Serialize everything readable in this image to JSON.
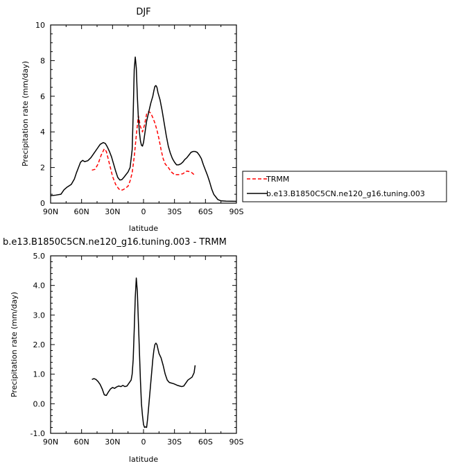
{
  "chart_data": [
    {
      "type": "line",
      "title": "DJF",
      "xlabel": "latitude",
      "ylabel": "Precipitation rate (mm/day)",
      "xlim": [
        90,
        -90
      ],
      "ylim": [
        0,
        10
      ],
      "x_ticks": [
        90,
        60,
        30,
        0,
        -30,
        -60,
        -90
      ],
      "x_tick_labels": [
        "90N",
        "60N",
        "30N",
        "0",
        "30S",
        "60S",
        "90S"
      ],
      "y_ticks": [
        0,
        2,
        4,
        6,
        8,
        10
      ],
      "y_tick_labels": [
        "0",
        "2",
        "4",
        "6",
        "8",
        "10"
      ],
      "legend_position": "right, outside plot",
      "series": [
        {
          "name": "TRMM",
          "color": "#ff0000",
          "dash": "dashed",
          "points": [
            [
              50,
              1.85
            ],
            [
              47,
              1.9
            ],
            [
              44,
              2.2
            ],
            [
              41,
              2.7
            ],
            [
              38,
              3.05
            ],
            [
              36,
              2.9
            ],
            [
              33,
              2.2
            ],
            [
              30,
              1.5
            ],
            [
              27,
              1.05
            ],
            [
              24,
              0.8
            ],
            [
              22,
              0.72
            ],
            [
              20,
              0.75
            ],
            [
              18,
              0.82
            ],
            [
              15,
              0.95
            ],
            [
              13,
              1.25
            ],
            [
              11,
              1.7
            ],
            [
              9,
              2.6
            ],
            [
              7,
              3.8
            ],
            [
              5,
              4.9
            ],
            [
              3,
              4.3
            ],
            [
              1,
              4.0
            ],
            [
              -1,
              4.4
            ],
            [
              -3,
              5.0
            ],
            [
              -5,
              5.15
            ],
            [
              -7,
              5.05
            ],
            [
              -9,
              4.8
            ],
            [
              -11,
              4.5
            ],
            [
              -13,
              4.1
            ],
            [
              -15,
              3.6
            ],
            [
              -17,
              3.0
            ],
            [
              -19,
              2.5
            ],
            [
              -21,
              2.2
            ],
            [
              -24,
              2.0
            ],
            [
              -27,
              1.75
            ],
            [
              -30,
              1.6
            ],
            [
              -34,
              1.6
            ],
            [
              -38,
              1.65
            ],
            [
              -42,
              1.8
            ],
            [
              -46,
              1.75
            ],
            [
              -50,
              1.55
            ]
          ]
        },
        {
          "name": "b.e13.B1850C5CN.ne120_g16.tuning.003",
          "color": "#000000",
          "dash": "solid",
          "points": [
            [
              90,
              0.42
            ],
            [
              85,
              0.45
            ],
            [
              80,
              0.5
            ],
            [
              77,
              0.75
            ],
            [
              74,
              0.9
            ],
            [
              70,
              1.05
            ],
            [
              67,
              1.35
            ],
            [
              65,
              1.7
            ],
            [
              63,
              2.0
            ],
            [
              61,
              2.3
            ],
            [
              59,
              2.4
            ],
            [
              57,
              2.33
            ],
            [
              54,
              2.38
            ],
            [
              51,
              2.55
            ],
            [
              48,
              2.8
            ],
            [
              45,
              3.05
            ],
            [
              42,
              3.3
            ],
            [
              39,
              3.4
            ],
            [
              37,
              3.35
            ],
            [
              35,
              3.15
            ],
            [
              33,
              2.9
            ],
            [
              31,
              2.6
            ],
            [
              29,
              2.2
            ],
            [
              27,
              1.8
            ],
            [
              25,
              1.45
            ],
            [
              23,
              1.3
            ],
            [
              21,
              1.32
            ],
            [
              19,
              1.45
            ],
            [
              17,
              1.6
            ],
            [
              15,
              1.75
            ],
            [
              13,
              2.0
            ],
            [
              11,
              3.0
            ],
            [
              10,
              5.0
            ],
            [
              9,
              7.5
            ],
            [
              8,
              8.2
            ],
            [
              7,
              7.6
            ],
            [
              6,
              6.0
            ],
            [
              5,
              4.8
            ],
            [
              4,
              4.0
            ],
            [
              3,
              3.5
            ],
            [
              2,
              3.25
            ],
            [
              1,
              3.2
            ],
            [
              0,
              3.4
            ],
            [
              -1,
              3.8
            ],
            [
              -2,
              4.2
            ],
            [
              -3,
              4.6
            ],
            [
              -5,
              5.1
            ],
            [
              -7,
              5.6
            ],
            [
              -9,
              6.0
            ],
            [
              -10,
              6.3
            ],
            [
              -11,
              6.55
            ],
            [
              -12,
              6.6
            ],
            [
              -13,
              6.5
            ],
            [
              -14,
              6.2
            ],
            [
              -16,
              5.8
            ],
            [
              -18,
              5.2
            ],
            [
              -20,
              4.5
            ],
            [
              -22,
              3.8
            ],
            [
              -24,
              3.2
            ],
            [
              -26,
              2.8
            ],
            [
              -28,
              2.5
            ],
            [
              -30,
              2.3
            ],
            [
              -32,
              2.15
            ],
            [
              -34,
              2.15
            ],
            [
              -36,
              2.2
            ],
            [
              -38,
              2.3
            ],
            [
              -40,
              2.45
            ],
            [
              -42,
              2.55
            ],
            [
              -44,
              2.7
            ],
            [
              -46,
              2.85
            ],
            [
              -48,
              2.9
            ],
            [
              -50,
              2.9
            ],
            [
              -52,
              2.85
            ],
            [
              -54,
              2.7
            ],
            [
              -56,
              2.5
            ],
            [
              -58,
              2.15
            ],
            [
              -60,
              1.85
            ],
            [
              -62,
              1.55
            ],
            [
              -64,
              1.2
            ],
            [
              -66,
              0.8
            ],
            [
              -68,
              0.5
            ],
            [
              -70,
              0.35
            ],
            [
              -72,
              0.2
            ],
            [
              -75,
              0.13
            ],
            [
              -80,
              0.11
            ],
            [
              -90,
              0.1
            ]
          ]
        }
      ]
    },
    {
      "type": "line",
      "title": "b.e13.B1850C5CN.ne120_g16.tuning.003 - TRMM",
      "xlabel": "latitude",
      "ylabel": "Precipitation rate (mm/day)",
      "xlim": [
        90,
        -90
      ],
      "ylim": [
        -1,
        5
      ],
      "x_ticks": [
        90,
        60,
        30,
        0,
        -30,
        -60,
        -90
      ],
      "x_tick_labels": [
        "90N",
        "60N",
        "30N",
        "0",
        "30S",
        "60S",
        "90S"
      ],
      "y_ticks": [
        -1,
        0,
        1,
        2,
        3,
        4,
        5
      ],
      "y_tick_labels": [
        "-1.0",
        "0.0",
        "1.0",
        "2.0",
        "3.0",
        "4.0",
        "5.0"
      ],
      "series": [
        {
          "color": "#000000",
          "dash": "solid",
          "points": [
            [
              50,
              0.82
            ],
            [
              48,
              0.85
            ],
            [
              46,
              0.82
            ],
            [
              44,
              0.75
            ],
            [
              42,
              0.65
            ],
            [
              40,
              0.5
            ],
            [
              38,
              0.3
            ],
            [
              36,
              0.28
            ],
            [
              34,
              0.4
            ],
            [
              32,
              0.5
            ],
            [
              30,
              0.55
            ],
            [
              28,
              0.52
            ],
            [
              26,
              0.57
            ],
            [
              24,
              0.6
            ],
            [
              22,
              0.58
            ],
            [
              20,
              0.62
            ],
            [
              18,
              0.58
            ],
            [
              16,
              0.6
            ],
            [
              14,
              0.7
            ],
            [
              12,
              0.8
            ],
            [
              11,
              1.0
            ],
            [
              10,
              1.5
            ],
            [
              9,
              2.5
            ],
            [
              8,
              3.6
            ],
            [
              7,
              4.25
            ],
            [
              6,
              3.8
            ],
            [
              5,
              2.8
            ],
            [
              4,
              1.8
            ],
            [
              3,
              0.8
            ],
            [
              2,
              0.0
            ],
            [
              1,
              -0.4
            ],
            [
              0,
              -0.7
            ],
            [
              -1,
              -0.8
            ],
            [
              -2,
              -0.78
            ],
            [
              -3,
              -0.8
            ],
            [
              -4,
              -0.5
            ],
            [
              -5,
              -0.1
            ],
            [
              -6,
              0.3
            ],
            [
              -7,
              0.7
            ],
            [
              -8,
              1.1
            ],
            [
              -9,
              1.5
            ],
            [
              -10,
              1.8
            ],
            [
              -11,
              2.0
            ],
            [
              -12,
              2.05
            ],
            [
              -13,
              2.0
            ],
            [
              -14,
              1.85
            ],
            [
              -15,
              1.7
            ],
            [
              -17,
              1.55
            ],
            [
              -19,
              1.3
            ],
            [
              -21,
              1.0
            ],
            [
              -23,
              0.8
            ],
            [
              -25,
              0.72
            ],
            [
              -27,
              0.7
            ],
            [
              -29,
              0.68
            ],
            [
              -31,
              0.65
            ],
            [
              -33,
              0.62
            ],
            [
              -35,
              0.6
            ],
            [
              -37,
              0.58
            ],
            [
              -39,
              0.6
            ],
            [
              -41,
              0.7
            ],
            [
              -43,
              0.8
            ],
            [
              -45,
              0.85
            ],
            [
              -47,
              0.9
            ],
            [
              -49,
              1.05
            ],
            [
              -50,
              1.3
            ]
          ]
        }
      ]
    }
  ]
}
